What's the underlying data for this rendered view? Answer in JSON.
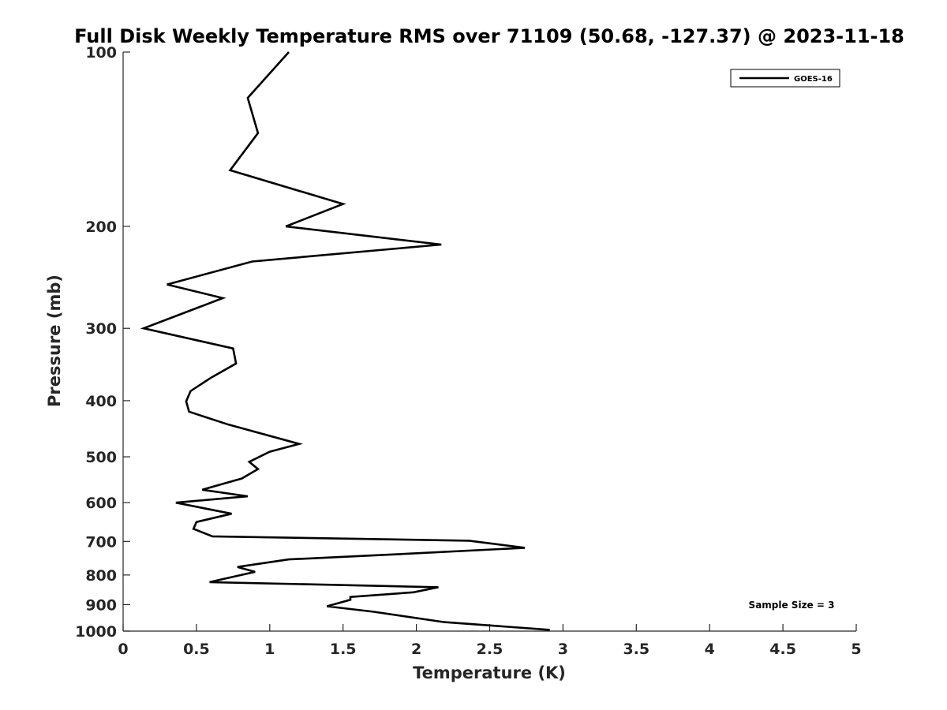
{
  "chart_data": {
    "type": "line",
    "title": "Full Disk Weekly Temperature RMS over 71109 (50.68, -127.37) @ 2023-11-18",
    "xlabel": "Temperature (K)",
    "ylabel": "Pressure (mb)",
    "xlim": [
      0,
      5
    ],
    "ylim": [
      1000,
      100
    ],
    "yscale": "log",
    "x_ticks": [
      0,
      0.5,
      1,
      1.5,
      2,
      2.5,
      3,
      3.5,
      4,
      4.5,
      5
    ],
    "x_tick_labels": [
      "0",
      "0.5",
      "1",
      "1.5",
      "2",
      "2.5",
      "3",
      "3.5",
      "4",
      "4.5",
      "5"
    ],
    "y_ticks": [
      100,
      200,
      300,
      400,
      500,
      600,
      700,
      800,
      900,
      1000
    ],
    "y_tick_labels": [
      "100",
      "200",
      "300",
      "400",
      "500",
      "600",
      "700",
      "800",
      "900",
      "1000"
    ],
    "grid": false,
    "legend": {
      "position": "top-right",
      "entries": [
        "GOES-16"
      ]
    },
    "annotation": "Sample Size = 3",
    "series": [
      {
        "name": "GOES-16",
        "color": "#000000",
        "points": [
          [
            1.13,
            100
          ],
          [
            0.85,
            120
          ],
          [
            0.92,
            138
          ],
          [
            0.73,
            160
          ],
          [
            1.5,
            183
          ],
          [
            1.11,
            200
          ],
          [
            2.17,
            215
          ],
          [
            0.88,
            230
          ],
          [
            0.3,
            252
          ],
          [
            0.68,
            266
          ],
          [
            0.14,
            300
          ],
          [
            0.75,
            325
          ],
          [
            0.77,
            345
          ],
          [
            0.6,
            365
          ],
          [
            0.46,
            385
          ],
          [
            0.43,
            401
          ],
          [
            0.45,
            418
          ],
          [
            0.72,
            440
          ],
          [
            1.2,
            475
          ],
          [
            1.0,
            490
          ],
          [
            0.86,
            510
          ],
          [
            0.92,
            525
          ],
          [
            0.81,
            545
          ],
          [
            0.54,
            570
          ],
          [
            0.85,
            585
          ],
          [
            0.36,
            600
          ],
          [
            0.74,
            627
          ],
          [
            0.5,
            648
          ],
          [
            0.48,
            666
          ],
          [
            0.61,
            686
          ],
          [
            2.36,
            698
          ],
          [
            2.74,
            718
          ],
          [
            1.8,
            738
          ],
          [
            1.13,
            752
          ],
          [
            0.78,
            775
          ],
          [
            0.9,
            790
          ],
          [
            0.59,
            823
          ],
          [
            2.15,
            840
          ],
          [
            1.98,
            857
          ],
          [
            1.55,
            873
          ],
          [
            1.55,
            883
          ],
          [
            1.39,
            906
          ],
          [
            1.71,
            926
          ],
          [
            2.19,
            965
          ],
          [
            2.91,
            995
          ]
        ]
      }
    ]
  }
}
